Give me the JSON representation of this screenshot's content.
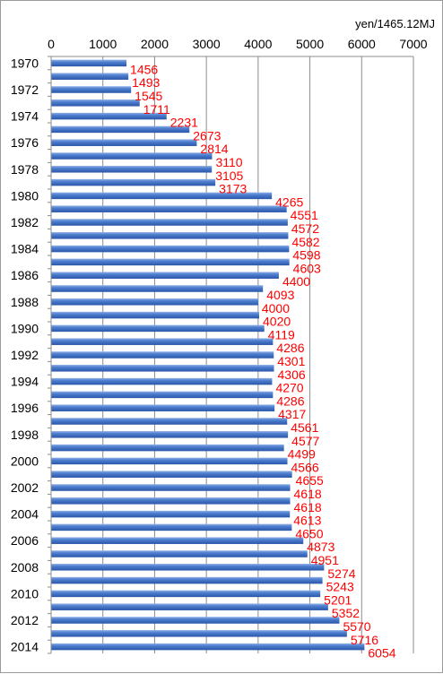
{
  "chart_data": {
    "type": "bar",
    "orientation": "horizontal",
    "unit_label": "yen/1465.12MJ",
    "categories": [
      "1970",
      "1971",
      "1972",
      "1973",
      "1974",
      "1975",
      "1976",
      "1977",
      "1978",
      "1979",
      "1980",
      "1981",
      "1982",
      "1983",
      "1984",
      "1985",
      "1986",
      "1987",
      "1988",
      "1989",
      "1990",
      "1991",
      "1992",
      "1993",
      "1994",
      "1995",
      "1996",
      "1997",
      "1998",
      "1999",
      "2000",
      "2001",
      "2002",
      "2003",
      "2004",
      "2005",
      "2006",
      "2007",
      "2008",
      "2009",
      "2010",
      "2011",
      "2012",
      "2013",
      "2014"
    ],
    "category_tick_labels": [
      "1970",
      "",
      "1972",
      "",
      "1974",
      "",
      "1976",
      "",
      "1978",
      "",
      "1980",
      "",
      "1982",
      "",
      "1984",
      "",
      "1986",
      "",
      "1988",
      "",
      "1990",
      "",
      "1992",
      "",
      "1994",
      "",
      "1996",
      "",
      "1998",
      "",
      "2000",
      "",
      "2002",
      "",
      "2004",
      "",
      "2006",
      "",
      "2008",
      "",
      "2010",
      "",
      "2012",
      "",
      "2014"
    ],
    "values": [
      1456,
      1493,
      1545,
      1711,
      2231,
      2673,
      2814,
      3110,
      3105,
      3173,
      4265,
      4551,
      4572,
      4582,
      4598,
      4603,
      4400,
      4093,
      4000,
      4020,
      4119,
      4286,
      4301,
      4306,
      4270,
      4286,
      4317,
      4561,
      4577,
      4499,
      4566,
      4655,
      4618,
      4618,
      4613,
      4650,
      4873,
      4951,
      5274,
      5243,
      5201,
      5352,
      5570,
      5716,
      6054
    ],
    "xlim": [
      0,
      7000
    ],
    "x_ticks": [
      0,
      1000,
      2000,
      3000,
      4000,
      5000,
      6000,
      7000
    ],
    "x_axis_position": "top",
    "grid": true,
    "bar_color": "#4472c4",
    "data_label_color": "#ff0000"
  }
}
